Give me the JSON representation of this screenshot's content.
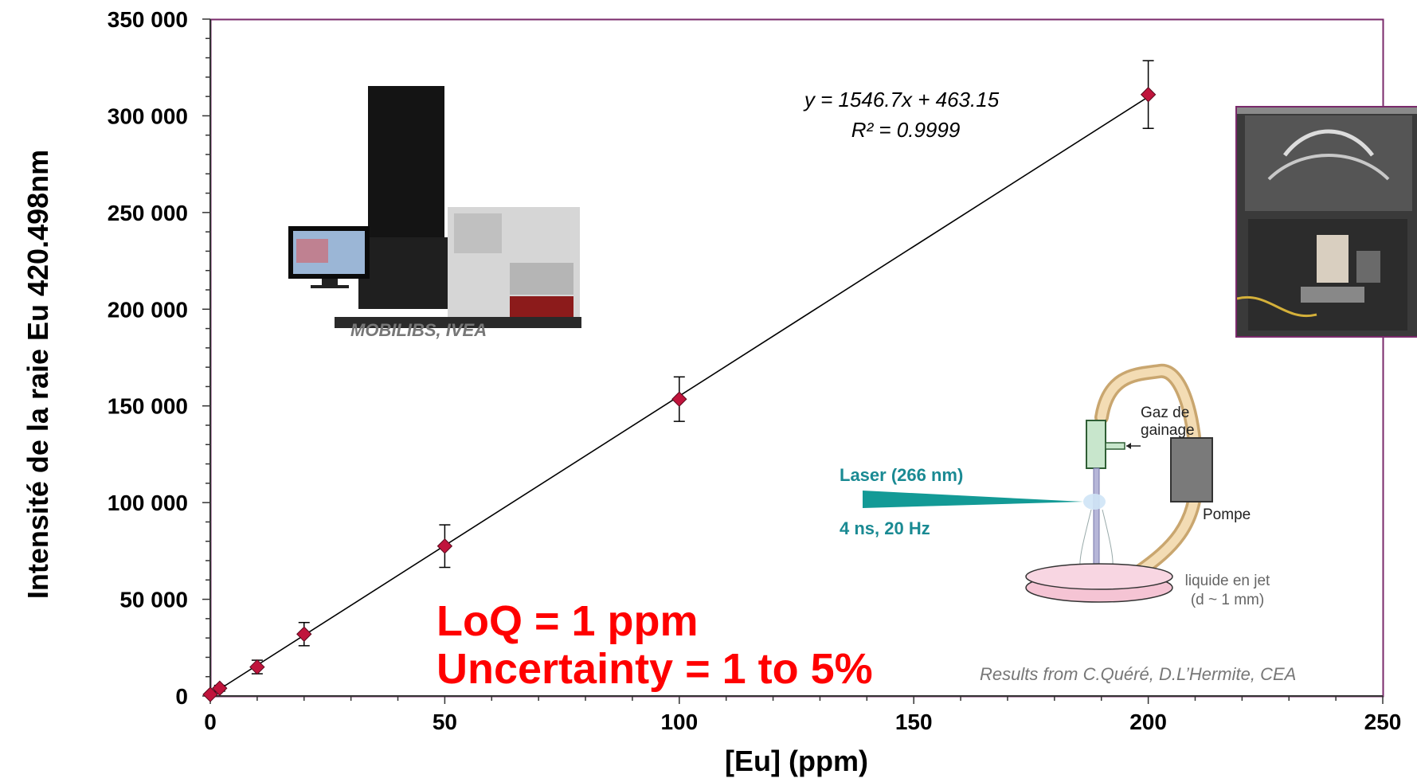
{
  "chart_data": {
    "type": "scatter",
    "title": "",
    "xlabel": "[Eu] (ppm)",
    "ylabel": "Intensité de la raie Eu 420.498nm",
    "xlim": [
      0,
      250
    ],
    "ylim": [
      0,
      350000
    ],
    "x_ticks": [
      "0",
      "50",
      "100",
      "150",
      "200",
      "250"
    ],
    "y_ticks": [
      "0",
      "50 000",
      "100 000",
      "150 000",
      "200 000",
      "250 000",
      "300 000",
      "350 000"
    ],
    "points": [
      {
        "x": 0,
        "y": 800,
        "err": 800
      },
      {
        "x": 2,
        "y": 4000,
        "err": 1500
      },
      {
        "x": 10,
        "y": 15000,
        "err": 3500
      },
      {
        "x": 20,
        "y": 32000,
        "err": 6000
      },
      {
        "x": 50,
        "y": 77500,
        "err": 11000
      },
      {
        "x": 100,
        "y": 153500,
        "err": 11500
      },
      {
        "x": 200,
        "y": 311000,
        "err": 17500
      }
    ],
    "fit": {
      "slope": 1546.7,
      "intercept": 463.15,
      "x_range": [
        0,
        200
      ]
    },
    "fit_equation": "y = 1546.7x + 463.15",
    "r_squared": "R² = 0.9999",
    "grid": false,
    "colors": {
      "marker": "#c0143c",
      "fit_line": "#000000",
      "plot_border": "#7a2a6b"
    }
  },
  "annotations": {
    "loq": "LoQ = 1 ppm",
    "uncertainty": "Uncertainty = 1 to 5%",
    "instrument_caption": "MOBILIBS, IVEA",
    "credit": "Results from C.Quéré, D.L’Hermite, CEA"
  },
  "schematic": {
    "laser_label": "Laser (266 nm)",
    "laser_params": "4 ns, 20 Hz",
    "gas_label_1": "Gaz de",
    "gas_label_2": "gainage",
    "pump_label": "Pompe",
    "liquid_label_1": "liquide en jet",
    "liquid_label_2": "(d ~  1 mm)",
    "colors": {
      "laser": "#139a96",
      "tube": "#f0d4a8",
      "nozzle": "#c8e6cc",
      "dish": "#f5c4d4",
      "pump": "#7a7a7a"
    }
  }
}
